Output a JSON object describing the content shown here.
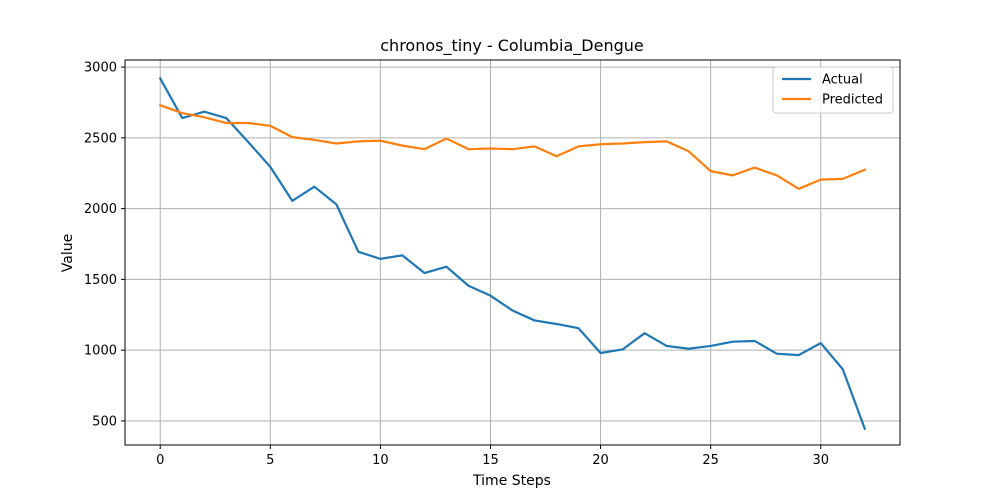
{
  "chart_data": {
    "type": "line",
    "title": "chronos_tiny - Columbia_Dengue",
    "xlabel": "Time Steps",
    "ylabel": "Value",
    "xlim": [
      -1.6,
      33.6
    ],
    "ylim": [
      330,
      3050
    ],
    "xticks": [
      0,
      5,
      10,
      15,
      20,
      25,
      30
    ],
    "yticks": [
      500,
      1000,
      1500,
      2000,
      2500,
      3000
    ],
    "grid": true,
    "legend_position": "top-right",
    "x": [
      0,
      1,
      2,
      3,
      4,
      5,
      6,
      7,
      8,
      9,
      10,
      11,
      12,
      13,
      14,
      15,
      16,
      17,
      18,
      19,
      20,
      21,
      22,
      23,
      24,
      25,
      26,
      27,
      28,
      29,
      30,
      31,
      32
    ],
    "series": [
      {
        "name": "Actual",
        "color": "#1f77b4",
        "values": [
          2920,
          2640,
          2685,
          2640,
          2470,
          2295,
          2055,
          2155,
          2030,
          1695,
          1645,
          1670,
          1545,
          1590,
          1455,
          1385,
          1280,
          1210,
          1185,
          1155,
          980,
          1005,
          1120,
          1030,
          1010,
          1030,
          1060,
          1065,
          975,
          965,
          1050,
          865,
          445
        ]
      },
      {
        "name": "Predicted",
        "color": "#ff7f0e",
        "values": [
          2730,
          2675,
          2645,
          2605,
          2605,
          2585,
          2505,
          2485,
          2460,
          2475,
          2480,
          2445,
          2420,
          2495,
          2420,
          2425,
          2420,
          2440,
          2370,
          2440,
          2455,
          2460,
          2470,
          2475,
          2405,
          2265,
          2235,
          2290,
          2235,
          2140,
          2205,
          2210,
          2275
        ]
      }
    ]
  }
}
